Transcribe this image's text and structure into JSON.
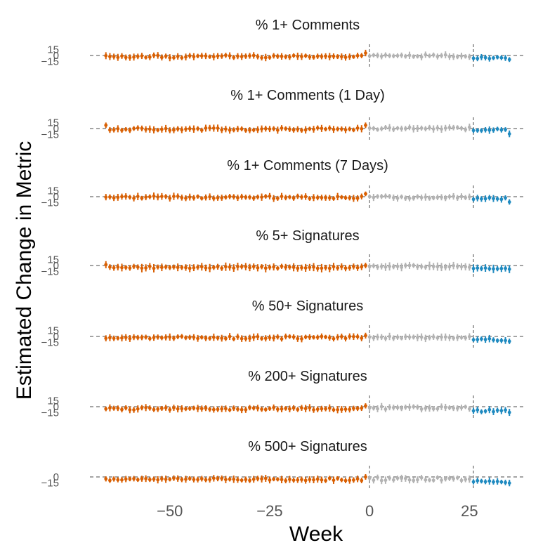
{
  "chart_data": {
    "type": "scatter",
    "subtype": "faceted-point-range",
    "xlabel": "Week",
    "ylabel": "Estimated Change in Metric",
    "xlim": [
      -70,
      39
    ],
    "x_ticks": [
      -50,
      -25,
      0,
      25
    ],
    "x_tick_labels": [
      "−50",
      "−25",
      "0",
      "25"
    ],
    "reference_lines": {
      "x": [
        0,
        26
      ],
      "y": 0,
      "style": "dashed",
      "color": "#6e6e6e"
    },
    "colors": {
      "pre": "#d95f02",
      "mid": "#b3b3b3",
      "post": "#1f8ac0"
    },
    "period_rules": {
      "pre": "week < 0",
      "mid": "0 <= week < 26",
      "post": "week >= 26"
    },
    "x_range": [
      -66,
      35
    ],
    "panels": [
      {
        "title": "% 1+ Comments",
        "y_ticks": [
          15,
          0,
          -15
        ],
        "y_tick_labels": [
          "15",
          "0",
          "−15"
        ],
        "ylim": [
          -22,
          22
        ],
        "estimates": [
          {
            "start": -66,
            "end": -1,
            "level": -2.5,
            "amp": 3.0,
            "last": 6
          },
          {
            "start": 0,
            "end": 25,
            "level": -1.0,
            "amp": 3.0
          },
          {
            "start": 26,
            "end": 35,
            "level": -6.0,
            "amp": 2.0,
            "last": -10
          }
        ],
        "ci_halfwidth": 7
      },
      {
        "title": "% 1+ Comments (1 Day)",
        "y_ticks": [
          15,
          0,
          -15
        ],
        "y_tick_labels": [
          "15",
          "0",
          "−15"
        ],
        "ylim": [
          -22,
          22
        ],
        "estimates": [
          {
            "start": -66,
            "end": -1,
            "level": -1.5,
            "amp": 3.0,
            "first": 8,
            "last": 8
          },
          {
            "start": 0,
            "end": 25,
            "level": 0.5,
            "amp": 3.0
          },
          {
            "start": 26,
            "end": 35,
            "level": -3.0,
            "amp": 2.0,
            "last": -13
          }
        ],
        "ci_halfwidth": 7
      },
      {
        "title": "% 1+ Comments (7 Days)",
        "y_ticks": [
          15,
          0,
          -15
        ],
        "y_tick_labels": [
          "15",
          "0",
          "−15"
        ],
        "ylim": [
          -22,
          22
        ],
        "estimates": [
          {
            "start": -66,
            "end": -1,
            "level": -1.5,
            "amp": 3.0,
            "last": 7
          },
          {
            "start": 0,
            "end": 25,
            "level": -1.0,
            "amp": 3.0
          },
          {
            "start": 26,
            "end": 35,
            "level": -5.0,
            "amp": 2.5,
            "last": -13
          }
        ],
        "ci_halfwidth": 7
      },
      {
        "title": "% 5+ Signatures",
        "y_ticks": [
          15,
          0,
          -15
        ],
        "y_tick_labels": [
          "15",
          "0",
          "−15"
        ],
        "ylim": [
          -22,
          22
        ],
        "estimates": [
          {
            "start": -66,
            "end": -1,
            "level": -4.5,
            "amp": 2.5,
            "first": 2,
            "last": 0
          },
          {
            "start": 0,
            "end": 25,
            "level": -2.0,
            "amp": 2.5
          },
          {
            "start": 26,
            "end": 35,
            "level": -7.0,
            "amp": 1.5,
            "last": -9
          }
        ],
        "ci_halfwidth": 8
      },
      {
        "title": "% 50+ Signatures",
        "y_ticks": [
          15,
          0,
          -15
        ],
        "y_tick_labels": [
          "15",
          "0",
          "−15"
        ],
        "ylim": [
          -22,
          22
        ],
        "estimates": [
          {
            "start": -66,
            "end": -1,
            "level": -3.0,
            "amp": 3.0,
            "last": 2
          },
          {
            "start": 0,
            "end": 25,
            "level": -2.0,
            "amp": 3.0
          },
          {
            "start": 26,
            "end": 35,
            "level": -8.0,
            "amp": 3.0,
            "last": -12
          }
        ],
        "ci_halfwidth": 7
      },
      {
        "title": "% 200+ Signatures",
        "y_ticks": [
          15,
          0,
          -15
        ],
        "y_tick_labels": [
          "15",
          "0",
          "−15"
        ],
        "ylim": [
          -22,
          22
        ],
        "estimates": [
          {
            "start": -66,
            "end": -1,
            "level": -5.0,
            "amp": 3.0,
            "last": 2
          },
          {
            "start": 0,
            "end": 25,
            "level": -3.0,
            "amp": 3.5
          },
          {
            "start": 26,
            "end": 35,
            "level": -10.0,
            "amp": 3.0,
            "last": -14
          }
        ],
        "ci_halfwidth": 7
      },
      {
        "title": "% 500+ Signatures",
        "y_ticks": [
          0,
          -15
        ],
        "y_tick_labels": [
          "0",
          "−15"
        ],
        "ylim": [
          -22,
          22
        ],
        "estimates": [
          {
            "start": -66,
            "end": -1,
            "level": -6.0,
            "amp": 3.0,
            "last": 0
          },
          {
            "start": 0,
            "end": 25,
            "level": -5.0,
            "amp": 4.0
          },
          {
            "start": 26,
            "end": 35,
            "level": -12.0,
            "amp": 3.0,
            "last": -15
          }
        ],
        "ci_halfwidth": 7
      }
    ]
  }
}
